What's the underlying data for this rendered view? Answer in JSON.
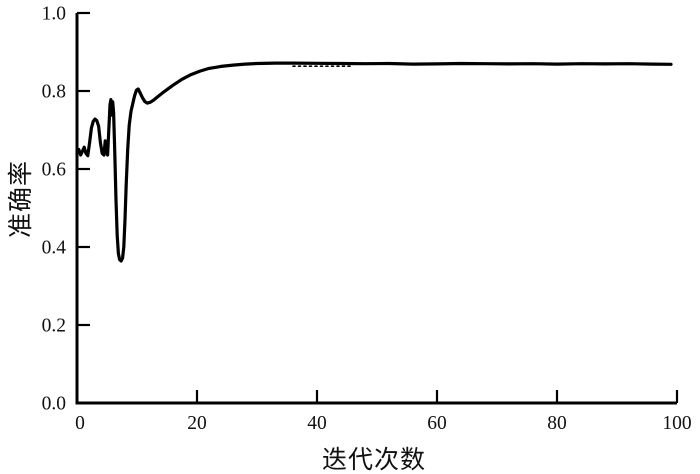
{
  "figure": {
    "background": "#ffffff",
    "axis_color": "#000000",
    "text_color": "#111111"
  },
  "chart_data": {
    "type": "line",
    "title": "",
    "xlabel": "迭代次数",
    "ylabel": "准确率",
    "xlim": [
      0,
      100
    ],
    "ylim": [
      0.0,
      1.0
    ],
    "x_ticks": [
      "0",
      "20",
      "40",
      "60",
      "80",
      "100"
    ],
    "x_tick_values": [
      0,
      20,
      40,
      60,
      80,
      100
    ],
    "y_ticks": [
      "0.0",
      "0.2",
      "0.4",
      "0.6",
      "0.8",
      "1.0"
    ],
    "y_tick_values": [
      0,
      0.2,
      0.4,
      0.6,
      0.8,
      1.0
    ],
    "grid": false,
    "legend": "none",
    "frame": "left-bottom-only",
    "tick_direction": "in",
    "line_color": "#000000",
    "series": [
      {
        "name": "准确率",
        "style": "solid",
        "points": [
          [
            0,
            0.64
          ],
          [
            0.3,
            0.65
          ],
          [
            0.6,
            0.636
          ],
          [
            0.9,
            0.645
          ],
          [
            1.2,
            0.656
          ],
          [
            1.5,
            0.64
          ],
          [
            1.8,
            0.634
          ],
          [
            2.1,
            0.668
          ],
          [
            2.4,
            0.705
          ],
          [
            2.7,
            0.722
          ],
          [
            3.0,
            0.728
          ],
          [
            3.3,
            0.724
          ],
          [
            3.6,
            0.71
          ],
          [
            3.9,
            0.668
          ],
          [
            4.2,
            0.64
          ],
          [
            4.5,
            0.636
          ],
          [
            4.7,
            0.672
          ],
          [
            4.9,
            0.645
          ],
          [
            5.1,
            0.636
          ],
          [
            5.3,
            0.7
          ],
          [
            5.5,
            0.765
          ],
          [
            5.65,
            0.778
          ],
          [
            5.8,
            0.738
          ],
          [
            5.95,
            0.772
          ],
          [
            6.1,
            0.745
          ],
          [
            6.3,
            0.64
          ],
          [
            6.5,
            0.52
          ],
          [
            6.7,
            0.43
          ],
          [
            6.9,
            0.383
          ],
          [
            7.1,
            0.368
          ],
          [
            7.35,
            0.364
          ],
          [
            7.6,
            0.372
          ],
          [
            7.8,
            0.4
          ],
          [
            8.0,
            0.47
          ],
          [
            8.2,
            0.56
          ],
          [
            8.45,
            0.65
          ],
          [
            8.7,
            0.712
          ],
          [
            9.0,
            0.748
          ],
          [
            9.3,
            0.768
          ],
          [
            9.6,
            0.788
          ],
          [
            9.9,
            0.802
          ],
          [
            10.2,
            0.805
          ],
          [
            10.5,
            0.796
          ],
          [
            10.9,
            0.783
          ],
          [
            11.3,
            0.773
          ],
          [
            11.7,
            0.769
          ],
          [
            12.2,
            0.771
          ],
          [
            12.8,
            0.777
          ],
          [
            13.5,
            0.786
          ],
          [
            14.5,
            0.798
          ],
          [
            16,
            0.815
          ],
          [
            17.5,
            0.83
          ],
          [
            19,
            0.842
          ],
          [
            20.5,
            0.851
          ],
          [
            22,
            0.858
          ],
          [
            24,
            0.863
          ],
          [
            26,
            0.8665
          ],
          [
            28,
            0.869
          ],
          [
            30,
            0.8705
          ],
          [
            33,
            0.8715
          ],
          [
            36,
            0.8715
          ],
          [
            40,
            0.871
          ],
          [
            44,
            0.8705
          ],
          [
            48,
            0.87
          ],
          [
            52,
            0.8705
          ],
          [
            56,
            0.869
          ],
          [
            60,
            0.8695
          ],
          [
            64,
            0.8705
          ],
          [
            68,
            0.87
          ],
          [
            72,
            0.8695
          ],
          [
            76,
            0.87
          ],
          [
            80,
            0.869
          ],
          [
            84,
            0.87
          ],
          [
            88,
            0.8695
          ],
          [
            92,
            0.87
          ],
          [
            96,
            0.869
          ],
          [
            99,
            0.8685
          ]
        ]
      },
      {
        "name": "plateau-dotted-overlap",
        "style": "dotted",
        "points": [
          [
            36,
            0.8635
          ],
          [
            46,
            0.8635
          ]
        ]
      }
    ]
  }
}
